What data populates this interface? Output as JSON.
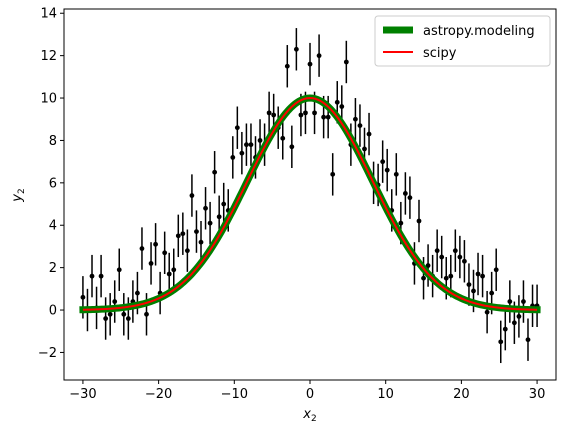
{
  "chart_data": {
    "type": "scatter",
    "xlabel_base": "x",
    "xlabel_sub": "2",
    "ylabel_base": "y",
    "ylabel_sub": "2",
    "xlim": [
      -32.5,
      32.5
    ],
    "ylim": [
      -3.3,
      14.2
    ],
    "xticks": [
      -30,
      -20,
      -10,
      0,
      10,
      20,
      30
    ],
    "yticks": [
      -2,
      0,
      2,
      4,
      6,
      8,
      10,
      12,
      14
    ],
    "grid": false,
    "legend_position": "top-right",
    "legend": [
      {
        "label": "astropy.modeling",
        "color": "#008000"
      },
      {
        "label": "scipy",
        "color": "#ff0000"
      }
    ],
    "model": {
      "amplitude": 10.0,
      "mean": 0.0,
      "stddev": 8.3,
      "x_range": [
        -30,
        30
      ]
    },
    "series": [
      {
        "marker_color": "#000000",
        "error": 1.0,
        "x": [
          -30.0,
          -29.4,
          -28.8,
          -28.2,
          -27.6,
          -27.0,
          -26.4,
          -25.8,
          -25.2,
          -24.6,
          -24.0,
          -23.4,
          -22.8,
          -22.2,
          -21.6,
          -21.0,
          -20.4,
          -19.8,
          -19.2,
          -18.6,
          -18.0,
          -17.4,
          -16.8,
          -16.2,
          -15.6,
          -15.0,
          -14.4,
          -13.8,
          -13.2,
          -12.6,
          -12.0,
          -11.4,
          -10.8,
          -10.2,
          -9.6,
          -9.0,
          -8.4,
          -7.8,
          -7.2,
          -6.6,
          -6.0,
          -5.4,
          -4.8,
          -4.2,
          -3.6,
          -3.0,
          -2.4,
          -1.8,
          -1.2,
          -0.6,
          0.0,
          0.6,
          1.2,
          1.8,
          2.4,
          3.0,
          3.6,
          4.2,
          4.8,
          5.4,
          6.0,
          6.6,
          7.2,
          7.8,
          8.4,
          9.0,
          9.6,
          10.2,
          10.8,
          11.4,
          12.0,
          12.6,
          13.2,
          13.8,
          14.4,
          15.0,
          15.6,
          16.2,
          16.8,
          17.4,
          18.0,
          18.6,
          19.2,
          19.8,
          20.4,
          21.0,
          21.6,
          22.2,
          22.8,
          23.4,
          24.0,
          24.6,
          25.2,
          25.8,
          26.4,
          27.0,
          27.6,
          28.2,
          28.8,
          29.4,
          30.0
        ],
        "y": [
          0.6,
          0.0,
          1.6,
          0.1,
          1.6,
          -0.4,
          -0.2,
          0.4,
          1.9,
          -0.2,
          -0.4,
          0.4,
          0.8,
          2.9,
          -0.2,
          2.2,
          3.1,
          0.8,
          2.7,
          1.7,
          1.9,
          3.5,
          3.6,
          2.8,
          5.4,
          3.7,
          3.2,
          4.8,
          4.1,
          6.5,
          4.4,
          5.0,
          4.7,
          7.2,
          8.6,
          7.4,
          7.8,
          7.8,
          7.2,
          8.0,
          7.8,
          9.3,
          9.2,
          8.6,
          8.1,
          11.5,
          7.7,
          12.3,
          9.2,
          9.3,
          11.6,
          9.3,
          12.0,
          9.1,
          9.1,
          6.4,
          9.8,
          9.6,
          11.7,
          7.8,
          9.0,
          8.7,
          7.6,
          8.3,
          6.0,
          5.9,
          7.0,
          6.6,
          4.7,
          6.4,
          4.1,
          5.5,
          5.3,
          2.2,
          4.2,
          1.5,
          2.1,
          1.6,
          2.8,
          2.5,
          1.5,
          1.6,
          2.8,
          2.5,
          2.3,
          1.2,
          0.9,
          1.7,
          1.6,
          -0.1,
          0.8,
          1.9,
          -1.5,
          -0.9,
          0.4,
          -0.6,
          -0.3,
          0.4,
          -1.4,
          0.2,
          0.2
        ]
      }
    ]
  }
}
